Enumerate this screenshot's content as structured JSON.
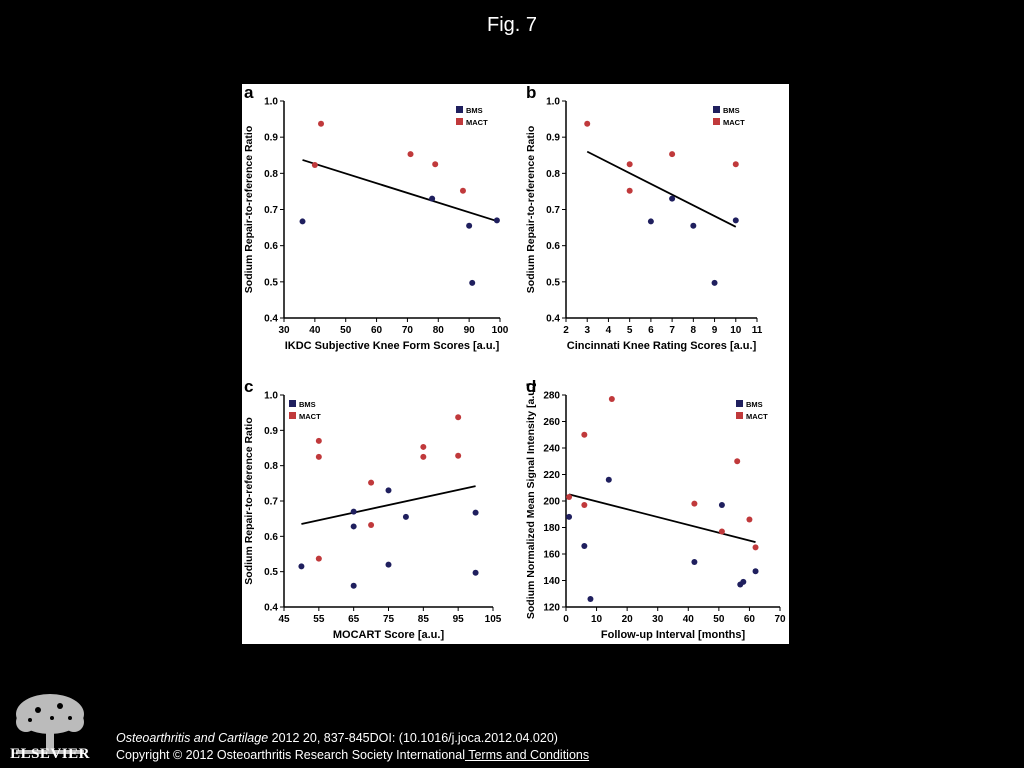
{
  "page": {
    "figure_title": "Fig. 7",
    "citation_journal": "Osteoarthritis and Cartilage",
    "citation_rest": " 2012 20, 837-845DOI: (10.1016/j.joca.2012.04.020)",
    "copyright": "Copyright © 2012 Osteoarthritis Research Society International",
    "terms_link": " Terms and Conditions",
    "publisher_logo_text": "ELSEVIER",
    "colors": {
      "background": "#000000",
      "bms": "#1f1f5e",
      "mact": "#c0393b"
    }
  },
  "chart_data": [
    {
      "panel": "a",
      "type": "scatter",
      "xlabel": "IKDC Subjective Knee Form Scores [a.u.]",
      "ylabel": "Sodium Repair-to-reference Ratio",
      "xlim": [
        30,
        100
      ],
      "ylim": [
        0.4,
        1.0
      ],
      "xticks": [
        30,
        40,
        50,
        60,
        70,
        80,
        90,
        100
      ],
      "yticks": [
        0.4,
        0.5,
        0.6,
        0.7,
        0.8,
        0.9,
        1.0
      ],
      "legend": [
        "BMS",
        "MACT"
      ],
      "legend_position": "top-right",
      "series": [
        {
          "name": "BMS",
          "points": [
            [
              36,
              0.667
            ],
            [
              78,
              0.73
            ],
            [
              90,
              0.655
            ],
            [
              91,
              0.497
            ],
            [
              99,
              0.67
            ]
          ]
        },
        {
          "name": "MACT",
          "points": [
            [
              40,
              0.823
            ],
            [
              42,
              0.937
            ],
            [
              71,
              0.853
            ],
            [
              79,
              0.825
            ],
            [
              88,
              0.752
            ]
          ]
        }
      ],
      "trendline": [
        [
          36,
          0.837
        ],
        [
          99,
          0.668
        ]
      ]
    },
    {
      "panel": "b",
      "type": "scatter",
      "xlabel": "Cincinnati Knee Rating Scores [a.u.]",
      "ylabel": "Sodium Repair-to-reference Ratio",
      "xlim": [
        2,
        11
      ],
      "ylim": [
        0.4,
        1.0
      ],
      "xticks": [
        2,
        3,
        4,
        5,
        6,
        7,
        8,
        9,
        10,
        11
      ],
      "yticks": [
        0.4,
        0.5,
        0.6,
        0.7,
        0.8,
        0.9,
        1.0
      ],
      "legend": [
        "BMS",
        "MACT"
      ],
      "legend_position": "top-right",
      "series": [
        {
          "name": "BMS",
          "points": [
            [
              6,
              0.667
            ],
            [
              7,
              0.73
            ],
            [
              8,
              0.655
            ],
            [
              9,
              0.497
            ],
            [
              10,
              0.67
            ]
          ]
        },
        {
          "name": "MACT",
          "points": [
            [
              3,
              0.937
            ],
            [
              5,
              0.825
            ],
            [
              5,
              0.752
            ],
            [
              7,
              0.853
            ],
            [
              10,
              0.825
            ]
          ]
        }
      ],
      "trendline": [
        [
          3,
          0.86
        ],
        [
          10,
          0.652
        ]
      ]
    },
    {
      "panel": "c",
      "type": "scatter",
      "xlabel": "MOCART Score [a.u.]",
      "ylabel": "Sodium Repair-to-reference Ratio",
      "xlim": [
        45,
        105
      ],
      "ylim": [
        0.4,
        1.0
      ],
      "xticks": [
        45,
        55,
        65,
        75,
        85,
        95,
        105
      ],
      "yticks": [
        0.4,
        0.5,
        0.6,
        0.7,
        0.8,
        0.9,
        1.0
      ],
      "legend": [
        "BMS",
        "MACT"
      ],
      "legend_position": "top-left",
      "series": [
        {
          "name": "BMS",
          "points": [
            [
              50,
              0.515
            ],
            [
              65,
              0.67
            ],
            [
              65,
              0.628
            ],
            [
              65,
              0.46
            ],
            [
              75,
              0.73
            ],
            [
              75,
              0.52
            ],
            [
              80,
              0.655
            ],
            [
              100,
              0.667
            ],
            [
              100,
              0.497
            ]
          ]
        },
        {
          "name": "MACT",
          "points": [
            [
              55,
              0.87
            ],
            [
              55,
              0.825
            ],
            [
              55,
              0.537
            ],
            [
              70,
              0.752
            ],
            [
              70,
              0.632
            ],
            [
              85,
              0.853
            ],
            [
              85,
              0.825
            ],
            [
              95,
              0.937
            ],
            [
              95,
              0.828
            ]
          ]
        }
      ],
      "trendline": [
        [
          50,
          0.635
        ],
        [
          100,
          0.742
        ]
      ]
    },
    {
      "panel": "d",
      "type": "scatter",
      "xlabel": "Follow-up Interval [months]",
      "ylabel": "Sodium Normalized Mean Signal Intensity [a.u.]",
      "xlim": [
        0,
        70
      ],
      "ylim": [
        120,
        280
      ],
      "xticks": [
        0,
        10,
        20,
        30,
        40,
        50,
        60,
        70
      ],
      "yticks": [
        120,
        140,
        160,
        180,
        200,
        220,
        240,
        260,
        280
      ],
      "legend": [
        "BMS",
        "MACT"
      ],
      "legend_position": "top-right",
      "series": [
        {
          "name": "BMS",
          "points": [
            [
              1,
              188
            ],
            [
              6,
              166
            ],
            [
              8,
              126
            ],
            [
              14,
              216
            ],
            [
              42,
              154
            ],
            [
              51,
              197
            ],
            [
              57,
              137
            ],
            [
              58,
              139
            ],
            [
              62,
              147
            ]
          ]
        },
        {
          "name": "MACT",
          "points": [
            [
              1,
              203
            ],
            [
              6,
              197
            ],
            [
              6,
              250
            ],
            [
              15,
              277
            ],
            [
              42,
              198
            ],
            [
              51,
              177
            ],
            [
              56,
              230
            ],
            [
              60,
              186
            ],
            [
              62,
              165
            ]
          ]
        }
      ],
      "trendline": [
        [
          1,
          205
        ],
        [
          62,
          169
        ]
      ]
    }
  ]
}
